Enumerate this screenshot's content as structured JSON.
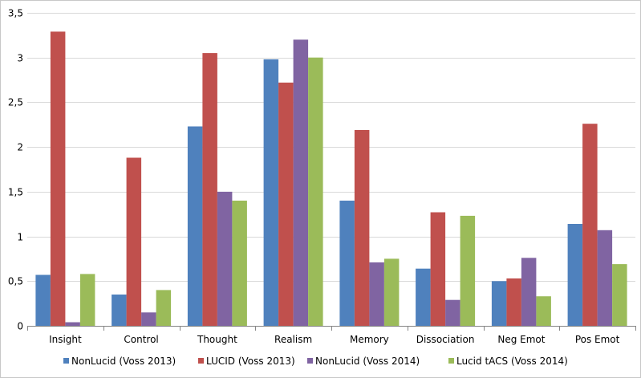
{
  "chart_data": {
    "type": "bar",
    "title": "",
    "xlabel": "",
    "ylabel": "",
    "categories": [
      "Insight",
      "Control",
      "Thought",
      "Realism",
      "Memory",
      "Dissociation",
      "Neg Emot",
      "Pos Emot"
    ],
    "series": [
      {
        "name": "NonLucid (Voss 2013)",
        "color": "#4f81bd",
        "values": [
          0.57,
          0.35,
          2.23,
          2.98,
          1.4,
          0.64,
          0.5,
          1.14
        ]
      },
      {
        "name": "LUCID (Voss 2013)",
        "color": "#c0504d",
        "values": [
          3.29,
          1.88,
          3.05,
          2.72,
          2.19,
          1.27,
          0.53,
          2.26
        ]
      },
      {
        "name": "NonLucid (Voss 2014)",
        "color": "#8064a2",
        "values": [
          0.04,
          0.15,
          1.5,
          3.2,
          0.71,
          0.29,
          0.76,
          1.07
        ]
      },
      {
        "name": "Lucid tACS (Voss 2014)",
        "color": "#9bbb59",
        "values": [
          0.58,
          0.4,
          1.4,
          3.0,
          0.75,
          1.23,
          0.33,
          0.69
        ]
      }
    ],
    "yticks": [
      "0",
      "0,5",
      "1",
      "1,5",
      "2",
      "2,5",
      "3",
      "3,5"
    ],
    "ylim": [
      0,
      3.5
    ],
    "grid": true,
    "legend_position": "bottom"
  }
}
